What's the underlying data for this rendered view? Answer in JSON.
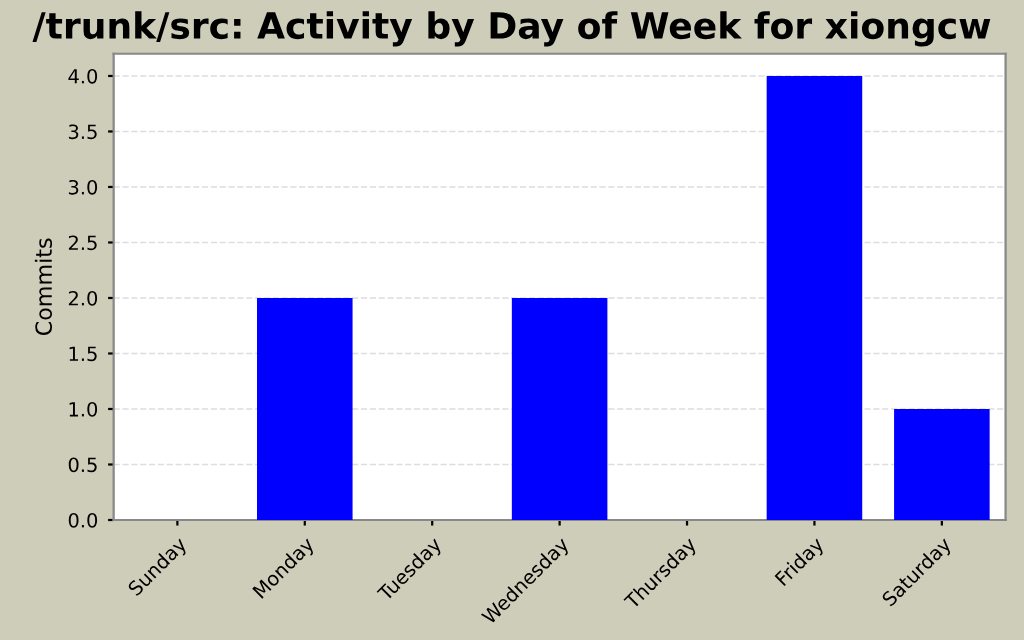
{
  "chart_data": {
    "type": "bar",
    "title": "/trunk/src: Activity by Day of Week for xiongcw",
    "ylabel": "Commits",
    "categories": [
      "Sunday",
      "Monday",
      "Tuesday",
      "Wednesday",
      "Thursday",
      "Friday",
      "Saturday"
    ],
    "values": [
      0,
      2,
      0,
      2,
      0,
      4,
      1
    ],
    "color": "#0000ff",
    "ylim": [
      0,
      4.2
    ],
    "yticks": [
      {
        "value": 0,
        "label": "0.0"
      },
      {
        "value": 0.5,
        "label": "0.5"
      },
      {
        "value": 1,
        "label": "1.0"
      },
      {
        "value": 1.5,
        "label": "1.5"
      },
      {
        "value": 2,
        "label": "2.0"
      },
      {
        "value": 2.5,
        "label": "2.5"
      },
      {
        "value": 3,
        "label": "3.0"
      },
      {
        "value": 3.5,
        "label": "3.5"
      },
      {
        "value": 4,
        "label": "4.0"
      }
    ],
    "grid": "y"
  }
}
